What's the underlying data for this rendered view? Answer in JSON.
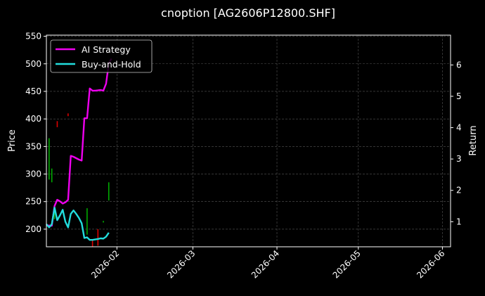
{
  "chart_data": {
    "type": "line",
    "title": "cnoption [AG2606P12800.SHF]",
    "xlabel": "",
    "ylabel": "Price",
    "y2label": "Return",
    "xlim": [
      "2026-01-06",
      "2026-06-04"
    ],
    "ylim": [
      168,
      552
    ],
    "y2lim": [
      0.2,
      6.95
    ],
    "grid": true,
    "legend_position": "top-left",
    "x_ticks": [
      "2026-02",
      "2026-03",
      "2026-04",
      "2026-05",
      "2026-06"
    ],
    "x_tick_dates": [
      "2026-02-01",
      "2026-03-01",
      "2026-04-01",
      "2026-05-01",
      "2026-06-01"
    ],
    "y_ticks": [
      200,
      250,
      300,
      350,
      400,
      450,
      500,
      550
    ],
    "y2_ticks": [
      1,
      2,
      3,
      4,
      5,
      6
    ],
    "colors": {
      "background": "#000000",
      "axes": "#ffffff",
      "grid": "#555555",
      "strategy": "#ee00ee",
      "buy_hold": "#22dddd",
      "up": "#00aa00",
      "down": "#dd0000"
    },
    "candles": [
      {
        "date": "2026-01-07",
        "high": 365,
        "low": 290,
        "dir": "up"
      },
      {
        "date": "2026-01-08",
        "high": 310,
        "low": 285,
        "dir": "up"
      },
      {
        "date": "2026-01-09",
        "high": 238,
        "low": 218,
        "dir": "up"
      },
      {
        "date": "2026-01-10",
        "high": 396,
        "low": 385,
        "dir": "down"
      },
      {
        "date": "2026-01-14",
        "high": 410,
        "low": 405,
        "dir": "down"
      },
      {
        "date": "2026-01-21",
        "high": 238,
        "low": 190,
        "dir": "up"
      },
      {
        "date": "2026-01-23",
        "high": 180,
        "low": 168,
        "dir": "down"
      },
      {
        "date": "2026-01-25",
        "high": 200,
        "low": 170,
        "dir": "down"
      },
      {
        "date": "2026-01-27",
        "high": 215,
        "low": 212,
        "dir": "up"
      },
      {
        "date": "2026-01-29",
        "high": 285,
        "low": 252,
        "dir": "up"
      }
    ],
    "series": [
      {
        "name": "AI Strategy",
        "axis": "right",
        "points": [
          [
            "2026-01-06",
            0.88
          ],
          [
            "2026-01-07",
            0.88
          ],
          [
            "2026-01-08",
            0.87
          ],
          [
            "2026-01-09",
            1.5
          ],
          [
            "2026-01-10",
            1.7
          ],
          [
            "2026-01-11",
            1.65
          ],
          [
            "2026-01-12",
            1.58
          ],
          [
            "2026-01-13",
            1.62
          ],
          [
            "2026-01-14",
            1.7
          ],
          [
            "2026-01-15",
            3.1
          ],
          [
            "2026-01-16",
            3.07
          ],
          [
            "2026-01-18",
            2.98
          ],
          [
            "2026-01-19",
            2.95
          ],
          [
            "2026-01-20",
            4.3
          ],
          [
            "2026-01-21",
            4.3
          ],
          [
            "2026-01-22",
            5.25
          ],
          [
            "2026-01-23",
            5.18
          ],
          [
            "2026-01-24",
            5.18
          ],
          [
            "2026-01-25",
            5.19
          ],
          [
            "2026-01-26",
            5.2
          ],
          [
            "2026-01-27",
            5.18
          ],
          [
            "2026-01-28",
            5.4
          ],
          [
            "2026-01-29",
            6.05
          ],
          [
            "2026-01-30",
            6.2
          ]
        ]
      },
      {
        "name": "Buy-and-Hold",
        "axis": "right",
        "points": [
          [
            "2026-01-06",
            0.92
          ],
          [
            "2026-01-07",
            0.82
          ],
          [
            "2026-01-08",
            0.92
          ],
          [
            "2026-01-09",
            1.45
          ],
          [
            "2026-01-10",
            1.05
          ],
          [
            "2026-01-11",
            1.2
          ],
          [
            "2026-01-12",
            1.38
          ],
          [
            "2026-01-13",
            1.0
          ],
          [
            "2026-01-14",
            0.82
          ],
          [
            "2026-01-15",
            1.25
          ],
          [
            "2026-01-16",
            1.36
          ],
          [
            "2026-01-17",
            1.25
          ],
          [
            "2026-01-18",
            1.12
          ],
          [
            "2026-01-19",
            0.95
          ],
          [
            "2026-01-20",
            0.48
          ],
          [
            "2026-01-21",
            0.5
          ],
          [
            "2026-01-22",
            0.42
          ],
          [
            "2026-01-23",
            0.42
          ],
          [
            "2026-01-25",
            0.45
          ],
          [
            "2026-01-26",
            0.47
          ],
          [
            "2026-01-27",
            0.46
          ],
          [
            "2026-01-28",
            0.52
          ],
          [
            "2026-01-29",
            0.65
          ]
        ]
      }
    ]
  }
}
